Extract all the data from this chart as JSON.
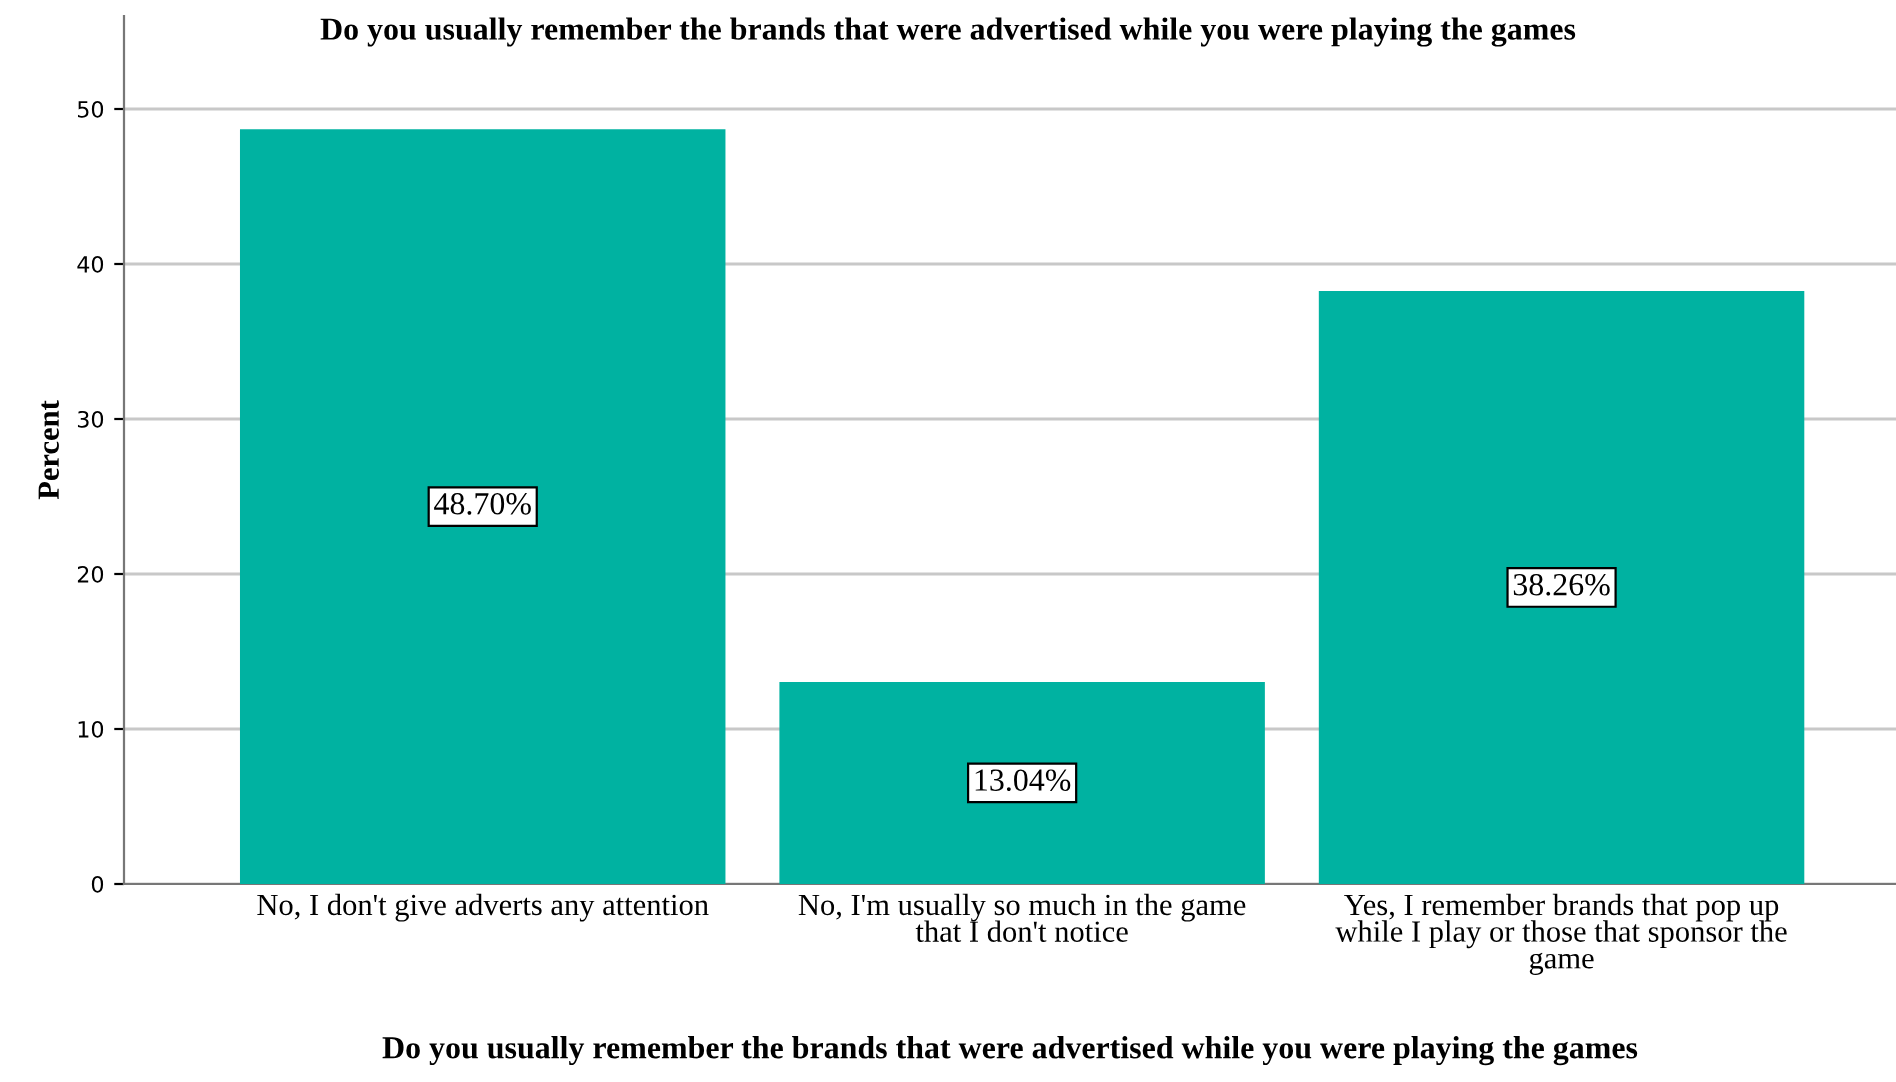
{
  "chart_data": {
    "type": "bar",
    "title": "Do you usually remember the brands that were advertised while you were playing the games",
    "xlabel": "Do you usually remember the brands that were advertised while you were playing the games",
    "ylabel": "Percent",
    "categories": [
      "No, I don't give adverts any attention",
      "No, I'm usually so much in the game\nthat I don't notice",
      "Yes, I remember brands that pop up\nwhile I play or those that sponsor the\ngame"
    ],
    "values": [
      48.7,
      13.04,
      38.26
    ],
    "value_labels": [
      "48.70%",
      "13.04%",
      "38.26%"
    ],
    "color": "#00b2a1",
    "ylim": [
      0,
      56
    ],
    "yticks": [
      0,
      10,
      20,
      30,
      40,
      50
    ],
    "grid": "y"
  }
}
